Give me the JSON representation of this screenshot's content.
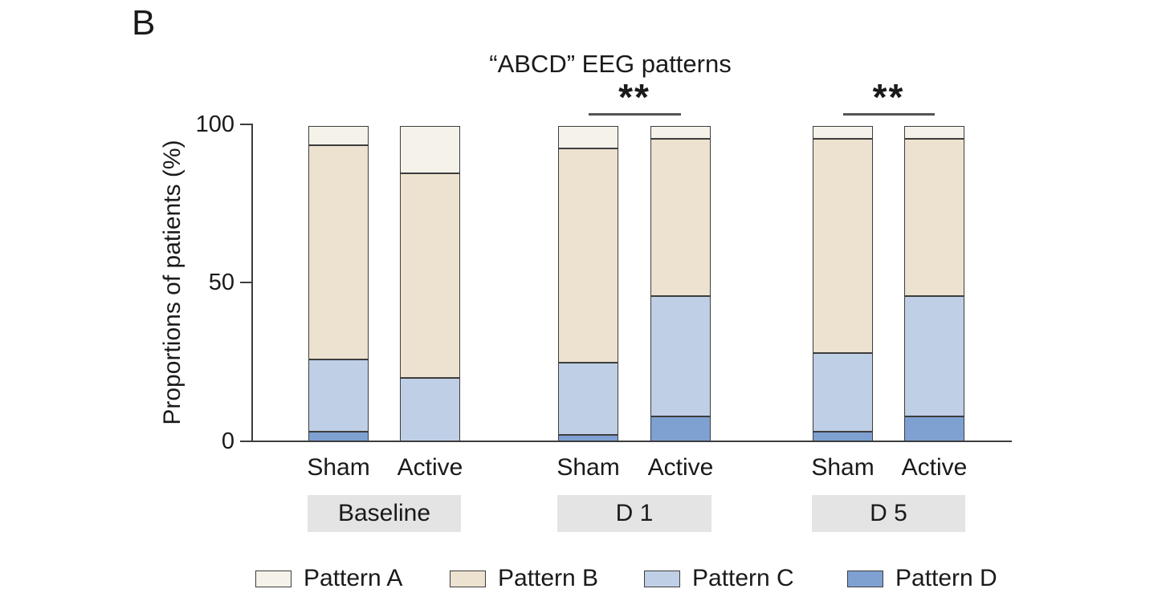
{
  "panel_label": "B",
  "title": "“ABCD” EEG patterns",
  "y_axis": {
    "label": "Proportions of patients (%)",
    "ticks": [
      "0",
      "50",
      "100"
    ]
  },
  "legend": [
    {
      "label": "Pattern A",
      "color": "#f5f2ea"
    },
    {
      "label": "Pattern B",
      "color": "#ece2cf"
    },
    {
      "label": "Pattern C",
      "color": "#bfcfe6"
    },
    {
      "label": "Pattern D",
      "color": "#7fa1d2"
    }
  ],
  "chart_data": {
    "type": "bar",
    "stacked": true,
    "title": "“ABCD” EEG patterns",
    "ylabel": "Proportions of patients (%)",
    "ylim": [
      0,
      100
    ],
    "yticks": [
      0,
      50,
      100
    ],
    "grid": false,
    "legend_position": "bottom",
    "stack_order_bottom_to_top": [
      "Pattern D",
      "Pattern C",
      "Pattern B",
      "Pattern A"
    ],
    "series_colors": {
      "Pattern A": "#f5f2ea",
      "Pattern B": "#ece2cf",
      "Pattern C": "#bfcfe6",
      "Pattern D": "#7fa1d2"
    },
    "groups": [
      {
        "label": "Baseline",
        "significance": null,
        "bars": [
          {
            "label": "Sham",
            "segments": {
              "Pattern A": 6,
              "Pattern B": 68,
              "Pattern C": 23,
              "Pattern D": 3
            }
          },
          {
            "label": "Active",
            "segments": {
              "Pattern A": 15,
              "Pattern B": 65,
              "Pattern C": 20,
              "Pattern D": 0
            }
          }
        ]
      },
      {
        "label": "D 1",
        "significance": "**",
        "bars": [
          {
            "label": "Sham",
            "segments": {
              "Pattern A": 7,
              "Pattern B": 68,
              "Pattern C": 23,
              "Pattern D": 2
            }
          },
          {
            "label": "Active",
            "segments": {
              "Pattern A": 4,
              "Pattern B": 50,
              "Pattern C": 38,
              "Pattern D": 8
            }
          }
        ]
      },
      {
        "label": "D 5",
        "significance": "**",
        "bars": [
          {
            "label": "Sham",
            "segments": {
              "Pattern A": 4,
              "Pattern B": 68,
              "Pattern C": 25,
              "Pattern D": 3
            }
          },
          {
            "label": "Active",
            "segments": {
              "Pattern A": 4,
              "Pattern B": 50,
              "Pattern C": 38,
              "Pattern D": 8
            }
          }
        ]
      }
    ]
  }
}
